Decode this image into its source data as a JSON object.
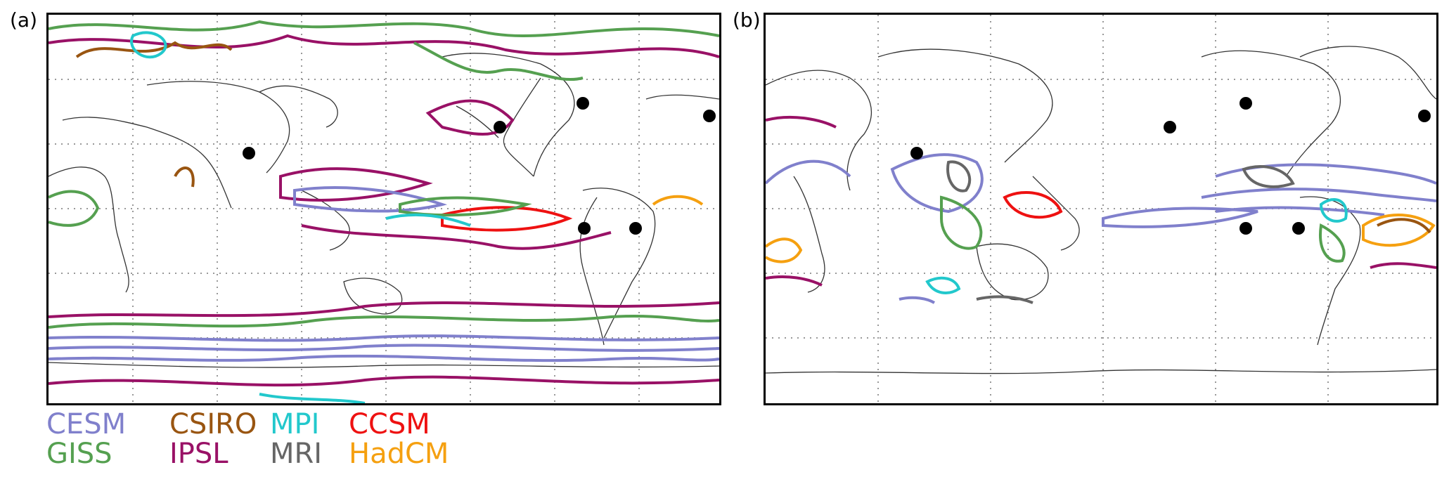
{
  "panels": [
    {
      "label": "(a)"
    },
    {
      "label": "(b)"
    }
  ],
  "legend": {
    "items": [
      {
        "label": "CESM",
        "color": "#8080cc"
      },
      {
        "label": "CSIRO",
        "color": "#995511"
      },
      {
        "label": "MPI",
        "color": "#22c8cc"
      },
      {
        "label": "CCSM",
        "color": "#ee1111"
      },
      {
        "label": "GISS",
        "color": "#55a050"
      },
      {
        "label": "IPSL",
        "color": "#991166"
      },
      {
        "label": "MRI",
        "color": "#666666"
      },
      {
        "label": "HadCM",
        "color": "#f5a010"
      }
    ]
  },
  "colors": {
    "frame": "#000000",
    "coastline": "#333333",
    "gridline": "#999999",
    "marker": "#000000"
  }
}
